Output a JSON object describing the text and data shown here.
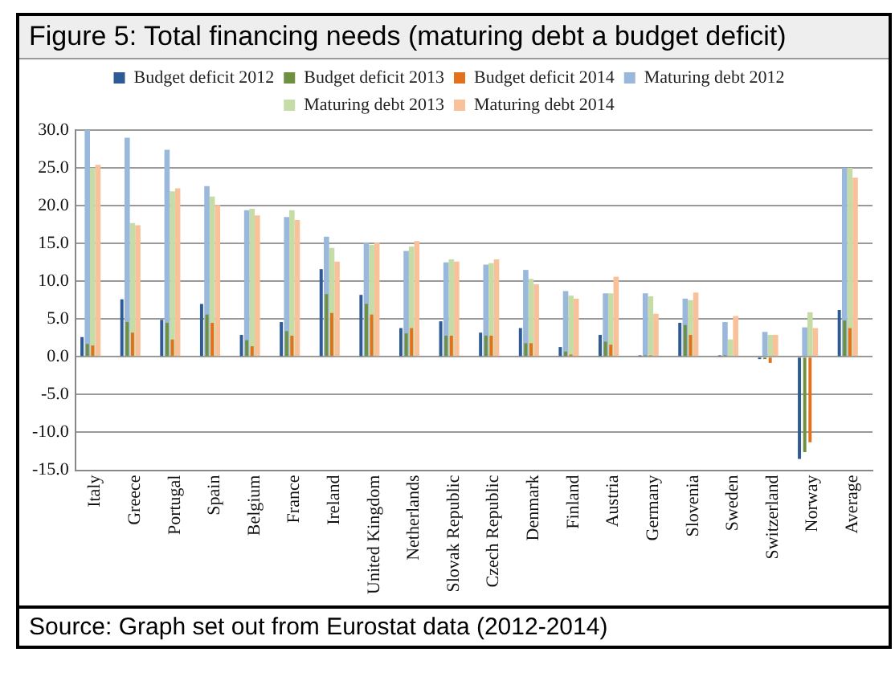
{
  "chart_data": {
    "type": "bar",
    "title": "Figure 5: Total financing needs (maturing debt a budget deficit)",
    "annotations": [
      "Source: Graph set out from Eurostat data (2012-2014)"
    ],
    "categories": [
      "Italy",
      "Greece",
      "Portugal",
      "Spain",
      "Belgium",
      "France",
      "Ireland",
      "United Kingdom",
      "Netherlands",
      "Slovak Republic",
      "Czech Republic",
      "Denmark",
      "Finland",
      "Austria",
      "Germany",
      "Slovenia",
      "Sweden",
      "Switzerland",
      "Norway",
      "Average"
    ],
    "series": [
      {
        "name": "Budget deficit 2012",
        "color": "#2e5a95",
        "values": [
          2.6,
          7.6,
          4.9,
          7.0,
          2.9,
          4.6,
          11.6,
          8.2,
          3.8,
          4.7,
          3.2,
          3.8,
          1.3,
          2.9,
          0.2,
          4.5,
          0.2,
          -0.3,
          -13.5,
          6.2
        ]
      },
      {
        "name": "Budget deficit 2013",
        "color": "#6f9040",
        "values": [
          1.7,
          4.6,
          4.5,
          5.6,
          2.2,
          3.4,
          8.3,
          7.0,
          3.1,
          2.8,
          2.8,
          1.8,
          0.7,
          2.0,
          0.2,
          4.2,
          0.2,
          -0.3,
          -12.6,
          4.8
        ]
      },
      {
        "name": "Budget deficit 2014",
        "color": "#e2711d",
        "values": [
          1.5,
          3.2,
          2.3,
          4.5,
          1.4,
          2.8,
          5.8,
          5.6,
          3.8,
          2.8,
          2.8,
          1.8,
          0.3,
          1.6,
          0.2,
          2.9,
          null,
          -0.8,
          -11.3,
          3.8
        ]
      },
      {
        "name": "Maturing debt 2012",
        "color": "#9ab8dc",
        "values": [
          30.0,
          29.0,
          27.4,
          22.6,
          19.4,
          18.5,
          15.9,
          15.1,
          14.0,
          12.5,
          12.2,
          11.5,
          8.7,
          8.4,
          8.4,
          7.7,
          4.6,
          3.3,
          3.9,
          25.0
        ]
      },
      {
        "name": "Maturing debt 2013",
        "color": "#c6dca6",
        "values": [
          25.0,
          17.7,
          21.9,
          21.2,
          19.6,
          19.4,
          14.4,
          14.8,
          14.6,
          12.9,
          12.4,
          10.3,
          8.1,
          8.4,
          8.0,
          7.5,
          2.3,
          2.9,
          5.9,
          25.0
        ]
      },
      {
        "name": "Maturing debt 2014",
        "color": "#f8c19a",
        "values": [
          25.4,
          17.4,
          22.3,
          20.1,
          18.7,
          18.1,
          12.6,
          15.1,
          15.3,
          12.6,
          12.9,
          9.6,
          7.7,
          10.6,
          5.7,
          8.5,
          5.4,
          2.9,
          3.8,
          23.7
        ]
      }
    ],
    "ylim": [
      -15,
      30
    ],
    "yticks": [
      {
        "value": -15,
        "label": "-15.0"
      },
      {
        "value": -10,
        "label": "-10.0"
      },
      {
        "value": -5,
        "label": "-5.0"
      },
      {
        "value": 0,
        "label": "0.0"
      },
      {
        "value": 5,
        "label": "5.0"
      },
      {
        "value": 10,
        "label": "10.0"
      },
      {
        "value": 15,
        "label": "15.0"
      },
      {
        "value": 20,
        "label": "20.0"
      },
      {
        "value": 25,
        "label": "25.0"
      },
      {
        "value": 30,
        "label": "30.0"
      }
    ],
    "grid": "y",
    "legend": "top"
  }
}
